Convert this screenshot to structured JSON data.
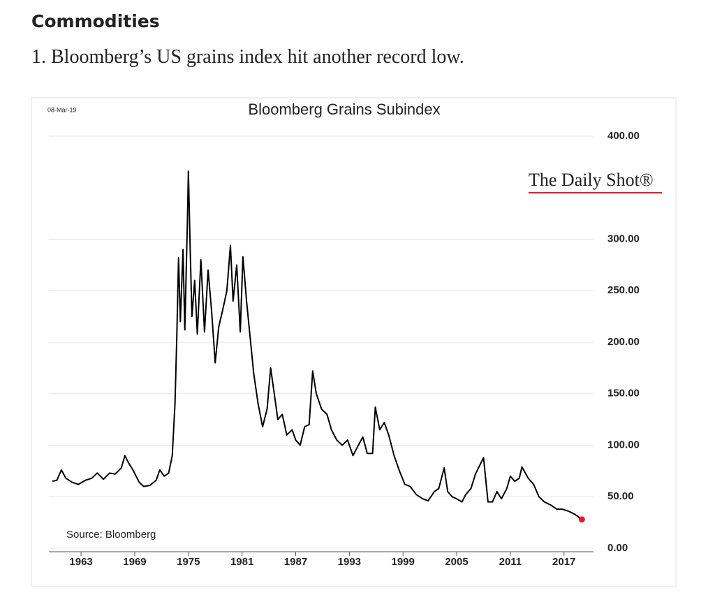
{
  "section": "Commodities",
  "caption": "1. Bloomberg’s US grains index hit another record low.",
  "chart_data": {
    "type": "line",
    "title": "Bloomberg Grains Subindex",
    "date": "08-Mar-19",
    "source": "Source: Bloomberg",
    "brand": "The Daily Shot®",
    "x": [
      1959.8,
      1960.3,
      1960.8,
      1961.3,
      1962,
      1962.7,
      1963.5,
      1964.2,
      1964.8,
      1965.5,
      1966.2,
      1966.8,
      1967.5,
      1967.9,
      1968.3,
      1968.8,
      1969.5,
      1970,
      1970.7,
      1971.4,
      1971.8,
      1972.3,
      1972.8,
      1973.2,
      1973.5,
      1973.7,
      1973.9,
      1974.1,
      1974.4,
      1974.6,
      1974.9,
      1975.0,
      1975.2,
      1975.4,
      1975.7,
      1976,
      1976.4,
      1976.8,
      1977.2,
      1977.6,
      1978,
      1978.4,
      1978.8,
      1979.3,
      1979.7,
      1980,
      1980.4,
      1980.8,
      1981.1,
      1981.5,
      1981.9,
      1982.3,
      1982.8,
      1983.3,
      1983.8,
      1984.2,
      1984.6,
      1985,
      1985.5,
      1986,
      1986.6,
      1987,
      1987.5,
      1988,
      1988.5,
      1988.9,
      1989.3,
      1989.9,
      1990.5,
      1991,
      1991.6,
      1992.2,
      1992.8,
      1993.4,
      1994,
      1994.5,
      1995,
      1995.6,
      1995.9,
      1996.4,
      1996.9,
      1997.4,
      1998,
      1998.6,
      1999.2,
      1999.8,
      2000.5,
      2001.2,
      2001.8,
      2002.5,
      2003,
      2003.6,
      2004,
      2004.5,
      2005,
      2005.6,
      2006,
      2006.6,
      2007.1,
      2008,
      2008.5,
      2009,
      2009.5,
      2010,
      2010.6,
      2011,
      2011.5,
      2012,
      2012.3,
      2013,
      2013.6,
      2014.2,
      2014.8,
      2015.5,
      2016.2,
      2016.8,
      2017.5,
      2018.2,
      2018.7,
      2019.0
    ],
    "series": [
      {
        "name": "Bloomberg Grains Subindex",
        "color": "#000000",
        "values": [
          65,
          66,
          76,
          68,
          64,
          62,
          66,
          68,
          73,
          67,
          73,
          72,
          78,
          90,
          83,
          76,
          64,
          60,
          61,
          66,
          76,
          70,
          73,
          90,
          140,
          205,
          282,
          220,
          290,
          212,
          320,
          366,
          290,
          225,
          260,
          208,
          280,
          210,
          270,
          230,
          180,
          215,
          230,
          250,
          294,
          240,
          275,
          210,
          283,
          240,
          205,
          170,
          140,
          118,
          135,
          175,
          150,
          125,
          130,
          110,
          115,
          105,
          100,
          118,
          120,
          172,
          150,
          135,
          130,
          115,
          105,
          100,
          105,
          90,
          100,
          108,
          92,
          92,
          137,
          115,
          122,
          110,
          90,
          75,
          62,
          60,
          52,
          48,
          46,
          55,
          58,
          78,
          55,
          50,
          48,
          45,
          52,
          58,
          72,
          88,
          45,
          45,
          55,
          48,
          58,
          70,
          65,
          68,
          79,
          68,
          62,
          50,
          45,
          42,
          38,
          38,
          36,
          33,
          30,
          28
        ]
      }
    ],
    "end_marker_color": "#e8192c",
    "xlim": [
      1959.4,
      2020.3
    ],
    "xticks": [
      1963,
      1969,
      1975,
      1981,
      1987,
      1993,
      1999,
      2005,
      2011,
      2017
    ],
    "ylim": [
      0,
      400
    ],
    "yticks": [
      {
        "value": 0,
        "label": "0.00"
      },
      {
        "value": 50,
        "label": "50.00"
      },
      {
        "value": 100,
        "label": "100.00"
      },
      {
        "value": 150,
        "label": "150.00"
      },
      {
        "value": 200,
        "label": "200.00"
      },
      {
        "value": 250,
        "label": "250.00"
      },
      {
        "value": 300,
        "label": "300.00"
      },
      {
        "value": 400,
        "label": "400.00"
      }
    ],
    "grid": true
  }
}
